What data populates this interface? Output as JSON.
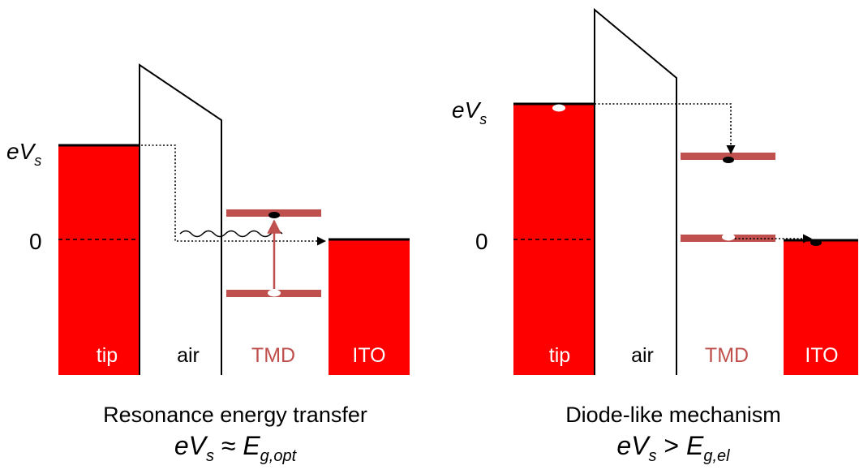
{
  "colors": {
    "metal": "#ff0000",
    "tmd_band": "#c0504d",
    "line": "#000000",
    "electron": "#000000",
    "hole": "#ffffff"
  },
  "panels": [
    {
      "id": "resonance",
      "region_labels": {
        "tip": "tip",
        "air": "air",
        "tmd": "TMD",
        "ito": "ITO"
      },
      "axis_labels": {
        "bias": "eV",
        "bias_sub": "s",
        "zero": "0"
      },
      "caption": {
        "title": "Resonance energy transfer",
        "eq_lhs": "eV",
        "eq_lhs_sub": "s",
        "eq_op": " ≈ ",
        "eq_rhs": "E",
        "eq_rhs_sub": "g,opt"
      }
    },
    {
      "id": "diode",
      "region_labels": {
        "tip": "tip",
        "air": "air",
        "tmd": "TMD",
        "ito": "ITO"
      },
      "axis_labels": {
        "bias": "eV",
        "bias_sub": "s",
        "zero": "0"
      },
      "caption": {
        "title": "Diode-like mechanism",
        "eq_lhs": "eV",
        "eq_lhs_sub": "s",
        "eq_op": " > ",
        "eq_rhs": "E",
        "eq_rhs_sub": "g,el"
      }
    }
  ]
}
